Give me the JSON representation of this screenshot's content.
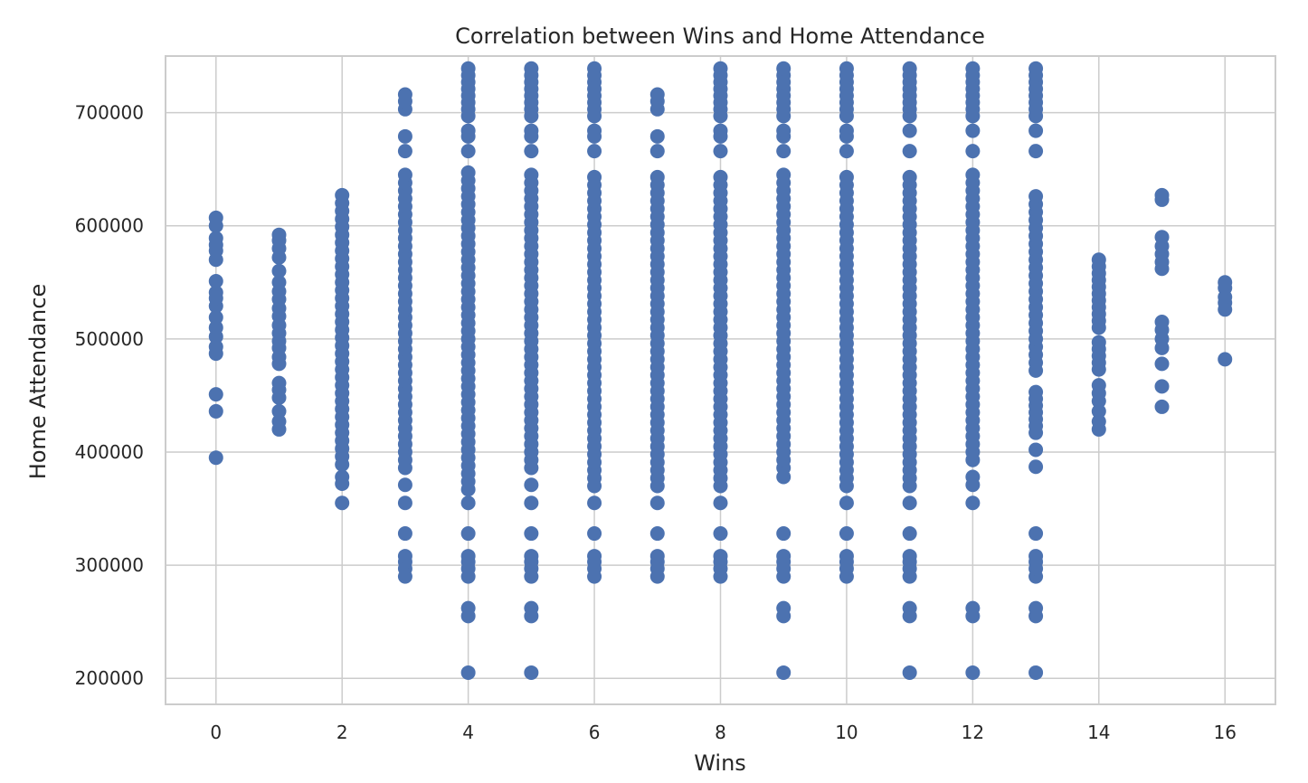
{
  "chart_data": {
    "type": "scatter",
    "title": "Correlation between Wins and Home Attendance",
    "xlabel": "Wins",
    "ylabel": "Home Attendance",
    "xlim": [
      -0.8,
      16.8
    ],
    "ylim": [
      177000,
      750000
    ],
    "xticks": [
      0,
      2,
      4,
      6,
      8,
      10,
      12,
      14,
      16
    ],
    "xtick_labels": [
      "0",
      "2",
      "4",
      "6",
      "8",
      "10",
      "12",
      "14",
      "16"
    ],
    "yticks": [
      200000,
      300000,
      400000,
      500000,
      600000,
      700000
    ],
    "ytick_labels": [
      "200000",
      "300000",
      "400000",
      "500000",
      "600000",
      "700000"
    ],
    "grid": true,
    "marker_color": "#4c72b0",
    "points_by_x": [
      {
        "x": 0,
        "values": [
          395000,
          436000,
          451000,
          487000,
          493000,
          502000,
          510000,
          519000,
          529000,
          536000,
          541000,
          551000,
          570000,
          578000,
          583000,
          589000,
          600000,
          607000
        ]
      },
      {
        "x": 1,
        "values": [
          420000,
          427000,
          436000,
          448000,
          455000,
          461000,
          478000,
          484000,
          492000,
          498000,
          505000,
          512000,
          520000,
          527000,
          535000,
          542000,
          550000,
          560000,
          572000,
          580000,
          587000,
          592000
        ]
      },
      {
        "x": 2,
        "values": [
          355000,
          372000,
          378000,
          "range:389000-632000:7000"
        ]
      },
      {
        "x": 3,
        "values": [
          290000,
          297000,
          303000,
          308000,
          328000,
          355000,
          371000,
          "range:386000-648000:7000",
          666000,
          679000,
          703000,
          710000,
          716000
        ]
      },
      {
        "x": 4,
        "values": [
          205000,
          255000,
          262000,
          290000,
          297000,
          303000,
          308000,
          328000,
          355000,
          "range:367000-648000:7000",
          666000,
          679000,
          684000,
          "range:697000-741000:6000"
        ]
      },
      {
        "x": 5,
        "values": [
          205000,
          255000,
          262000,
          290000,
          297000,
          303000,
          308000,
          328000,
          355000,
          371000,
          "range:386000-648000:7000",
          666000,
          679000,
          684000,
          "range:697000-741000:6000"
        ]
      },
      {
        "x": 6,
        "values": [
          290000,
          297000,
          303000,
          308000,
          328000,
          355000,
          "range:370000-648000:7000",
          666000,
          679000,
          684000,
          "range:697000-741000:6000"
        ]
      },
      {
        "x": 7,
        "values": [
          290000,
          297000,
          303000,
          308000,
          328000,
          355000,
          "range:370000-648000:7000",
          666000,
          679000,
          703000,
          710000,
          716000
        ]
      },
      {
        "x": 8,
        "values": [
          290000,
          297000,
          303000,
          308000,
          328000,
          355000,
          "range:370000-648000:7000",
          666000,
          679000,
          684000,
          "range:697000-741000:6000"
        ]
      },
      {
        "x": 9,
        "values": [
          205000,
          255000,
          262000,
          290000,
          297000,
          303000,
          308000,
          328000,
          378000,
          "range:386000-648000:7000",
          666000,
          679000,
          684000,
          "range:697000-741000:6000"
        ]
      },
      {
        "x": 10,
        "values": [
          290000,
          297000,
          303000,
          308000,
          328000,
          355000,
          "range:370000-648000:7000",
          666000,
          679000,
          684000,
          "range:697000-741000:6000"
        ]
      },
      {
        "x": 11,
        "values": [
          205000,
          255000,
          262000,
          290000,
          297000,
          303000,
          308000,
          328000,
          355000,
          "range:370000-645000:7000",
          666000,
          684000,
          "range:697000-741000:6000"
        ]
      },
      {
        "x": 12,
        "values": [
          205000,
          255000,
          262000,
          355000,
          371000,
          378000,
          "range:393000-645000:7000",
          666000,
          684000,
          "range:697000-741000:6000"
        ]
      },
      {
        "x": 13,
        "values": [
          205000,
          255000,
          262000,
          290000,
          297000,
          303000,
          308000,
          328000,
          387000,
          402000,
          "range:417000-458000:6000",
          "range:472000-632000:7000",
          666000,
          684000,
          "range:697000-741000:6000"
        ]
      },
      {
        "x": 14,
        "values": [
          420000,
          427000,
          436000,
          445000,
          452000,
          459000,
          "range:473000-497000:6000",
          "range:510000-572000:6000"
        ]
      },
      {
        "x": 15,
        "values": [
          440000,
          458000,
          478000,
          492000,
          500000,
          508000,
          515000,
          562000,
          568000,
          575000,
          582000,
          590000,
          623000,
          627000
        ]
      },
      {
        "x": 16,
        "values": [
          482000,
          526000,
          532000,
          537000,
          545000,
          550000
        ]
      }
    ]
  }
}
